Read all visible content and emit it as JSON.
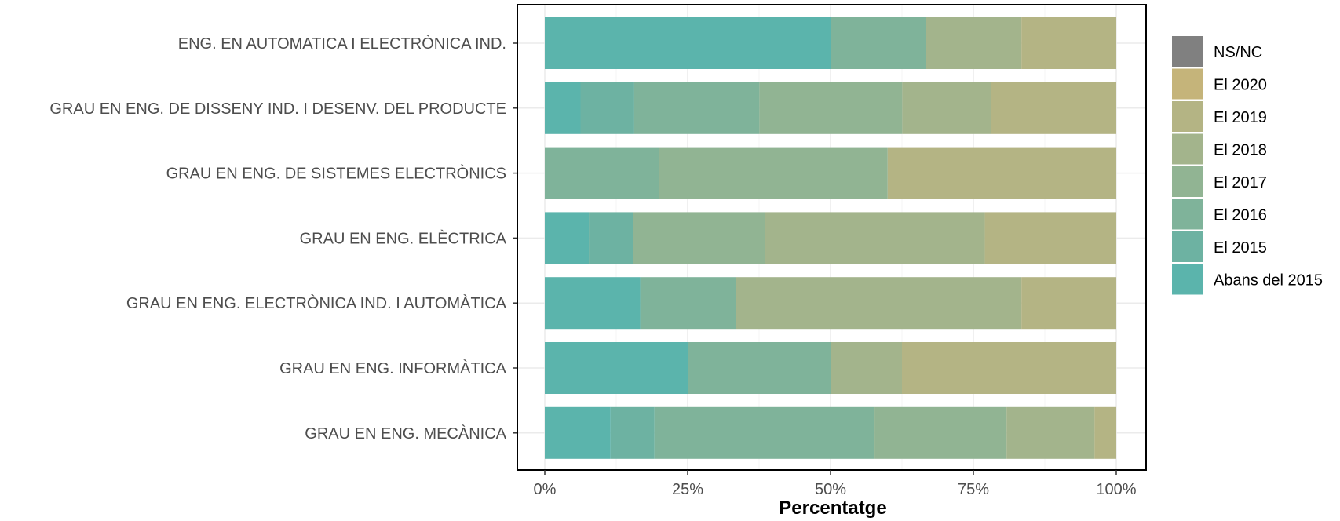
{
  "chart_data": {
    "type": "bar",
    "orientation": "horizontal",
    "stacked": true,
    "xlabel": "Percentatge",
    "ylabel": "",
    "xlim": [
      0,
      100
    ],
    "xticks": [
      0,
      25,
      50,
      75,
      100
    ],
    "xtick_labels": [
      "0%",
      "25%",
      "50%",
      "75%",
      "100%"
    ],
    "grid": true,
    "legend_position": "right",
    "categories": [
      "ENG. EN AUTOMATICA I ELECTRÒNICA IND.",
      "GRAU EN ENG. DE DISSENY IND. I DESENV. DEL PRODUCTE",
      "GRAU EN ENG. DE SISTEMES ELECTRÒNICS",
      "GRAU EN ENG. ELÈCTRICA",
      "GRAU EN ENG. ELECTRÒNICA IND. I AUTOMÀTICA",
      "GRAU EN ENG. INFORMÀTICA",
      "GRAU EN ENG. MECÀNICA"
    ],
    "series": [
      {
        "name": "Abans del 2015",
        "color": "#5bb4ac",
        "values": [
          50.0,
          6.25,
          0,
          7.7,
          16.7,
          25.0,
          11.5
        ]
      },
      {
        "name": "El 2015",
        "color": "#6db2a2",
        "values": [
          0,
          9.4,
          0,
          7.7,
          0,
          0,
          7.7
        ]
      },
      {
        "name": "El 2016",
        "color": "#7fb39a",
        "values": [
          16.7,
          21.9,
          20.0,
          0,
          16.7,
          25.0,
          38.5
        ]
      },
      {
        "name": "El 2017",
        "color": "#91b493",
        "values": [
          0,
          25.0,
          40.0,
          23.1,
          0,
          0,
          23.1
        ]
      },
      {
        "name": "El 2018",
        "color": "#a3b48c",
        "values": [
          16.7,
          15.6,
          0,
          38.5,
          50.0,
          12.5,
          15.4
        ]
      },
      {
        "name": "El 2019",
        "color": "#b4b484",
        "values": [
          16.6,
          21.85,
          40.0,
          23.0,
          16.6,
          37.5,
          3.8
        ]
      },
      {
        "name": "El 2020",
        "color": "#c5b47a",
        "values": [
          0,
          0,
          0,
          0,
          0,
          0,
          0
        ]
      },
      {
        "name": "NS/NC",
        "color": "#808080",
        "values": [
          0,
          0,
          0,
          0,
          0,
          0,
          0
        ]
      }
    ]
  }
}
